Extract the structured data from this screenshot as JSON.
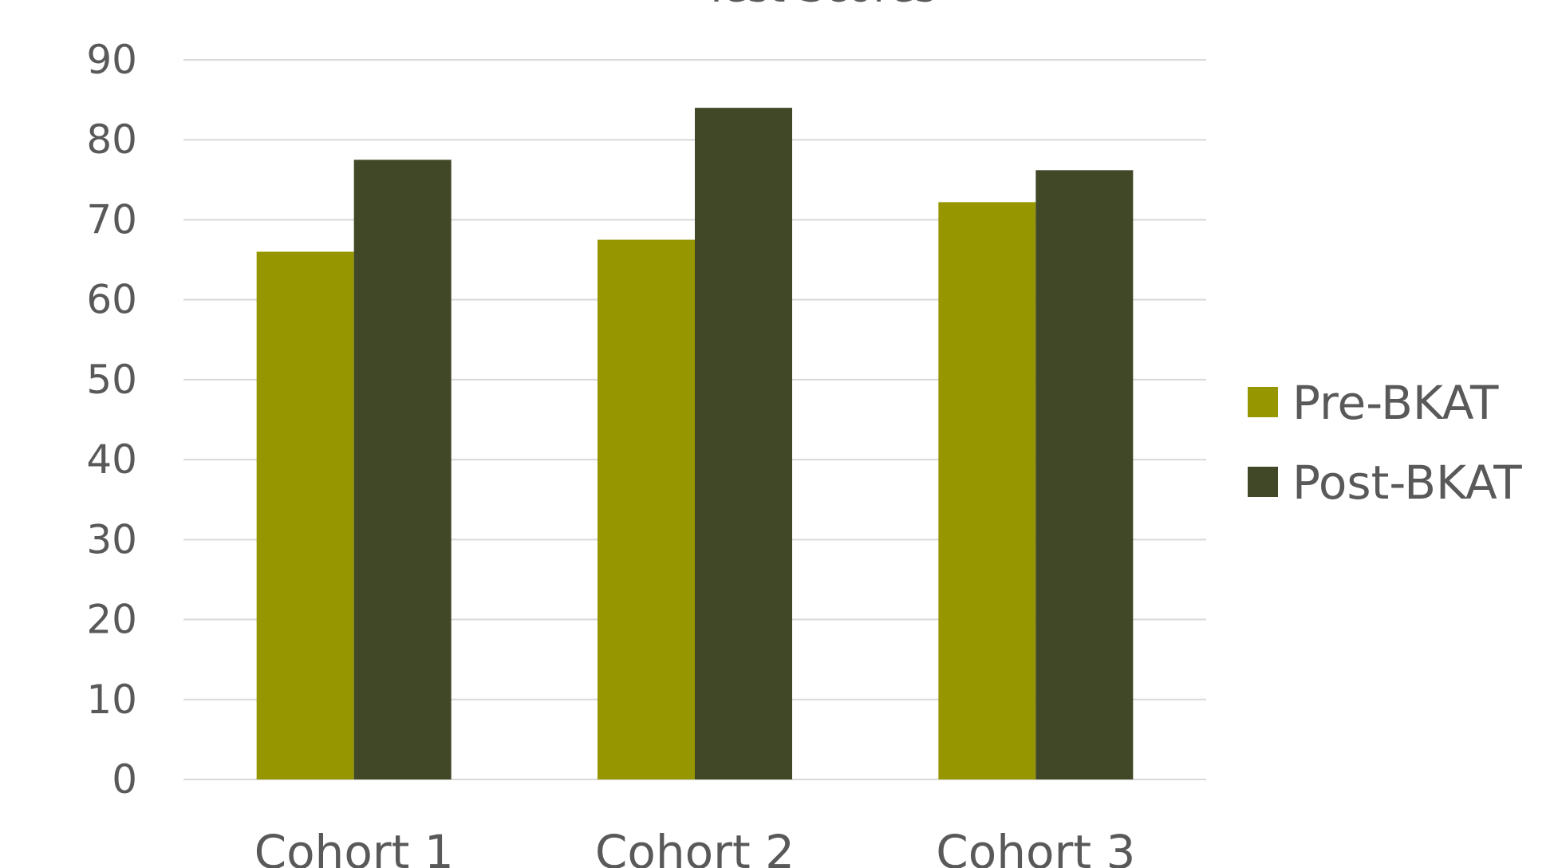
{
  "chart_data": {
    "type": "bar",
    "title": "Test Scores",
    "categories": [
      "Cohort 1",
      "Cohort 2",
      "Cohort 3"
    ],
    "series": [
      {
        "name": "Pre-BKAT",
        "color": "#969600",
        "values": [
          66,
          67.5,
          72.2
        ]
      },
      {
        "name": "Post-BKAT",
        "color": "#404827",
        "values": [
          77.5,
          84,
          76.2
        ]
      }
    ],
    "ylim": [
      0,
      90
    ],
    "yticks": [
      0,
      10,
      20,
      30,
      40,
      50,
      60,
      70,
      80,
      90
    ],
    "grid": true,
    "legend_position": "right"
  }
}
